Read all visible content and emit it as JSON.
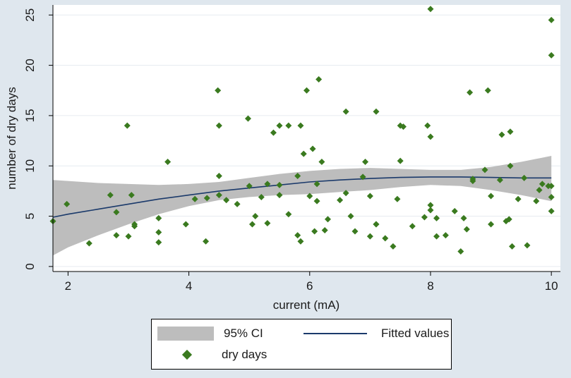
{
  "chart_data": {
    "type": "scatter",
    "xlabel": "current (mA)",
    "ylabel": "number of dry days",
    "xlim": [
      1.75,
      10.15
    ],
    "ylim": [
      -0.5,
      26
    ],
    "xticks": [
      2,
      4,
      6,
      8,
      10
    ],
    "yticks": [
      0,
      5,
      10,
      15,
      20,
      25
    ],
    "grid": "horizontal",
    "legend_position": "bottom",
    "colors": {
      "points": "#3a7a1f",
      "fit": "#1b3a6b",
      "ci": "#bdbdbd",
      "frame": "#dfe7ee"
    },
    "series": [
      {
        "name": "dry days",
        "kind": "points",
        "x": [
          1.75,
          1.98,
          2.35,
          2.7,
          2.8,
          2.8,
          2.98,
          3.0,
          3.05,
          3.1,
          3.1,
          3.5,
          3.5,
          3.5,
          3.65,
          3.95,
          4.1,
          4.28,
          4.3,
          4.48,
          4.5,
          4.5,
          4.5,
          4.62,
          4.8,
          4.98,
          5.0,
          5.05,
          5.1,
          5.2,
          5.3,
          5.3,
          5.4,
          5.5,
          5.5,
          5.5,
          5.65,
          5.65,
          5.8,
          5.8,
          5.85,
          5.85,
          5.9,
          5.95,
          6.0,
          6.05,
          6.08,
          6.12,
          6.12,
          6.15,
          6.2,
          6.25,
          6.3,
          6.5,
          6.6,
          6.6,
          6.68,
          6.75,
          6.88,
          6.92,
          7.0,
          7.0,
          7.1,
          7.1,
          7.1,
          7.25,
          7.38,
          7.45,
          7.5,
          7.5,
          7.55,
          7.7,
          7.9,
          7.95,
          8.0,
          8.0,
          8.0,
          8.0,
          8.1,
          8.1,
          8.25,
          8.4,
          8.5,
          8.55,
          8.6,
          8.65,
          8.7,
          8.7,
          8.9,
          8.95,
          9.0,
          9.0,
          9.15,
          9.18,
          9.25,
          9.3,
          9.32,
          9.32,
          9.35,
          9.45,
          9.55,
          9.6,
          9.75,
          9.8,
          9.85,
          9.95,
          10.0,
          10.0,
          10.0,
          10.0,
          10.0
        ],
        "y": [
          4.5,
          6.2,
          2.3,
          7.1,
          5.4,
          3.1,
          14.0,
          3.0,
          7.1,
          4.0,
          4.2,
          4.8,
          3.4,
          2.4,
          10.4,
          4.2,
          6.7,
          2.5,
          6.8,
          17.5,
          14.0,
          9.0,
          7.1,
          6.6,
          6.2,
          14.7,
          8.0,
          4.2,
          5.0,
          6.9,
          8.2,
          4.3,
          13.3,
          8.1,
          7.1,
          14.0,
          14.0,
          5.2,
          9.0,
          3.1,
          2.5,
          14.0,
          11.2,
          17.5,
          7.0,
          11.7,
          3.5,
          8.2,
          6.5,
          18.6,
          10.4,
          3.6,
          4.7,
          6.6,
          7.3,
          15.4,
          5.0,
          3.5,
          8.9,
          10.4,
          7.0,
          3.0,
          15.4,
          4.2,
          4.2,
          2.8,
          2.0,
          6.7,
          10.5,
          14.0,
          13.9,
          4.0,
          4.9,
          14.0,
          25.6,
          6.1,
          5.6,
          12.9,
          3.0,
          4.8,
          3.1,
          5.5,
          1.5,
          4.8,
          3.7,
          17.3,
          8.7,
          8.5,
          9.6,
          17.5,
          7.0,
          4.2,
          8.6,
          13.1,
          4.5,
          4.7,
          13.4,
          10.0,
          2.0,
          6.7,
          8.8,
          2.1,
          6.5,
          7.6,
          8.2,
          8.0,
          24.5,
          21.0,
          8.0,
          6.9,
          5.5
        ]
      },
      {
        "name": "Fitted values",
        "kind": "line",
        "x": [
          1.75,
          2,
          2.5,
          3,
          3.5,
          4,
          4.5,
          5,
          5.5,
          6,
          6.5,
          7,
          7.5,
          8,
          8.5,
          9,
          9.5,
          10
        ],
        "y": [
          4.9,
          5.2,
          5.7,
          6.2,
          6.7,
          7.1,
          7.5,
          7.8,
          8.1,
          8.4,
          8.6,
          8.75,
          8.85,
          8.9,
          8.9,
          8.85,
          8.8,
          8.8
        ]
      },
      {
        "name": "95% CI",
        "kind": "band",
        "x": [
          1.75,
          2,
          2.5,
          3,
          3.5,
          4,
          4.5,
          5,
          5.5,
          6,
          6.5,
          7,
          7.5,
          8,
          8.5,
          9,
          9.5,
          10
        ],
        "upper": [
          8.6,
          8.5,
          8.3,
          8.2,
          8.1,
          8.2,
          8.4,
          8.8,
          9.2,
          9.5,
          9.7,
          9.8,
          9.7,
          9.6,
          9.6,
          9.9,
          10.4,
          11.0
        ],
        "lower": [
          1.1,
          1.9,
          3.1,
          4.2,
          5.2,
          6.0,
          6.6,
          6.9,
          7.1,
          7.2,
          7.4,
          7.6,
          7.9,
          8.1,
          8.0,
          7.6,
          7.1,
          6.5
        ]
      }
    ]
  },
  "legend": {
    "ci_label": "95% CI",
    "fit_label": "Fitted values",
    "points_label": "dry days"
  }
}
